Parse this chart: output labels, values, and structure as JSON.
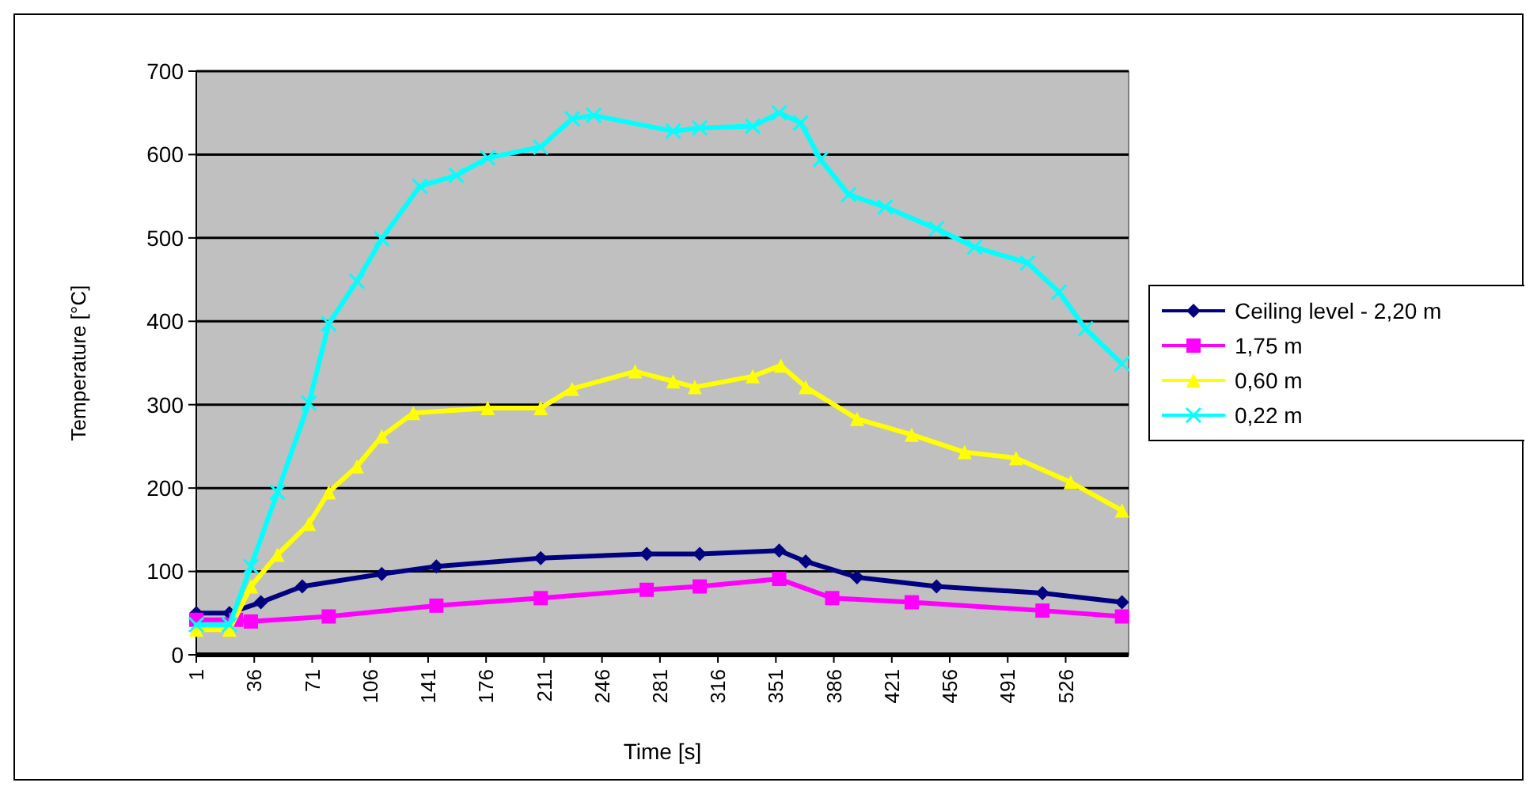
{
  "chart_data": {
    "type": "line",
    "xlabel": "Time [s]",
    "ylabel": "Temperature [°C]",
    "xlim": [
      1,
      564
    ],
    "xticks": [
      1,
      36,
      71,
      106,
      141,
      176,
      211,
      246,
      281,
      316,
      351,
      386,
      421,
      456,
      491,
      526
    ],
    "ylim": [
      0,
      700
    ],
    "yticks": [
      0,
      100,
      200,
      300,
      400,
      500,
      600,
      700
    ],
    "grid": "y",
    "legend": "right",
    "line_style": "solid",
    "series": [
      {
        "name": "Ceiling level - 2,20 m",
        "color": "#000080",
        "marker": "diamond",
        "x": [
          1,
          21,
          40,
          65,
          113,
          146,
          209,
          273,
          305,
          353,
          369,
          400,
          448,
          512,
          560
        ],
        "values": [
          50,
          50,
          63,
          82,
          97,
          106,
          116,
          121,
          121,
          125,
          112,
          93,
          82,
          74,
          63
        ]
      },
      {
        "name": "1,75 m",
        "color": "#ff00ff",
        "marker": "square",
        "x": [
          1,
          25,
          34,
          81,
          146,
          209,
          273,
          305,
          353,
          385,
          433,
          512,
          560
        ],
        "values": [
          42,
          42,
          40,
          46,
          59,
          68,
          78,
          82,
          91,
          68,
          63,
          53,
          46
        ]
      },
      {
        "name": "0,60 m",
        "color": "#ffff00",
        "marker": "triangle",
        "x": [
          1,
          21,
          34,
          50,
          69,
          81,
          98,
          113,
          132,
          177,
          209,
          228,
          266,
          289,
          302,
          337,
          354,
          369,
          400,
          433,
          465,
          496,
          529,
          560
        ],
        "values": [
          30,
          30,
          82,
          120,
          157,
          195,
          226,
          262,
          290,
          296,
          296,
          319,
          340,
          328,
          321,
          334,
          347,
          321,
          283,
          264,
          243,
          236,
          207,
          173
        ]
      },
      {
        "name": "0,22 m",
        "color": "#00ffff",
        "marker": "cross",
        "x": [
          1,
          21,
          34,
          50,
          69,
          81,
          98,
          113,
          136,
          158,
          177,
          209,
          228,
          241,
          289,
          305,
          337,
          353,
          366,
          378,
          395,
          417,
          448,
          471,
          503,
          522,
          538,
          560
        ],
        "values": [
          36,
          36,
          106,
          195,
          302,
          397,
          448,
          499,
          562,
          575,
          596,
          609,
          643,
          647,
          628,
          632,
          634,
          650,
          638,
          594,
          552,
          537,
          511,
          489,
          470,
          435,
          391,
          349
        ]
      }
    ]
  }
}
